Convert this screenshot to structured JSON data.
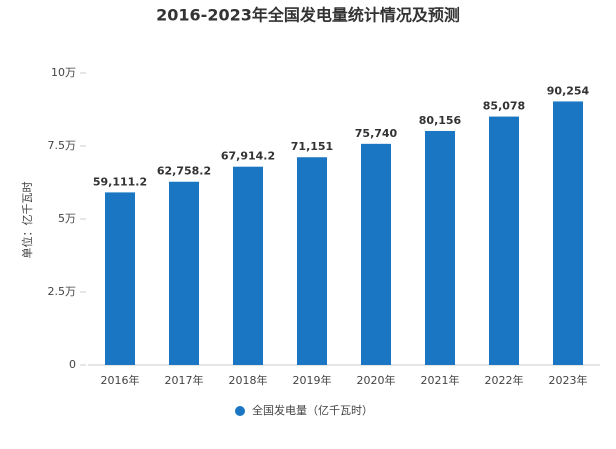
{
  "chart_data": {
    "type": "bar",
    "title": "2016-2023年全国发电量统计情况及预测",
    "y_label": "单位：亿千瓦时",
    "categories": [
      "2016年",
      "2017年",
      "2018年",
      "2019年",
      "2020年",
      "2021年",
      "2022年",
      "2023年"
    ],
    "series": [
      {
        "name": "全国发电量（亿千瓦时）",
        "color": "#1a76c2",
        "values": [
          59111.2,
          62758.2,
          67914.2,
          71151,
          75740,
          80156,
          85078,
          90254
        ],
        "value_labels": [
          "59,111.2",
          "62,758.2",
          "67,914.2",
          "71,151",
          "75,740",
          "80,156",
          "85,078",
          "90,254"
        ]
      }
    ],
    "ylim": [
      0,
      100000
    ],
    "yticks": [
      0,
      {
        "value": 25000,
        "label": "2.5万"
      },
      {
        "value": 50000,
        "label": "5万"
      },
      {
        "value": 75000,
        "label": "7.5万"
      },
      {
        "value": 100000,
        "label": "10万"
      }
    ],
    "legend": "bottom"
  }
}
